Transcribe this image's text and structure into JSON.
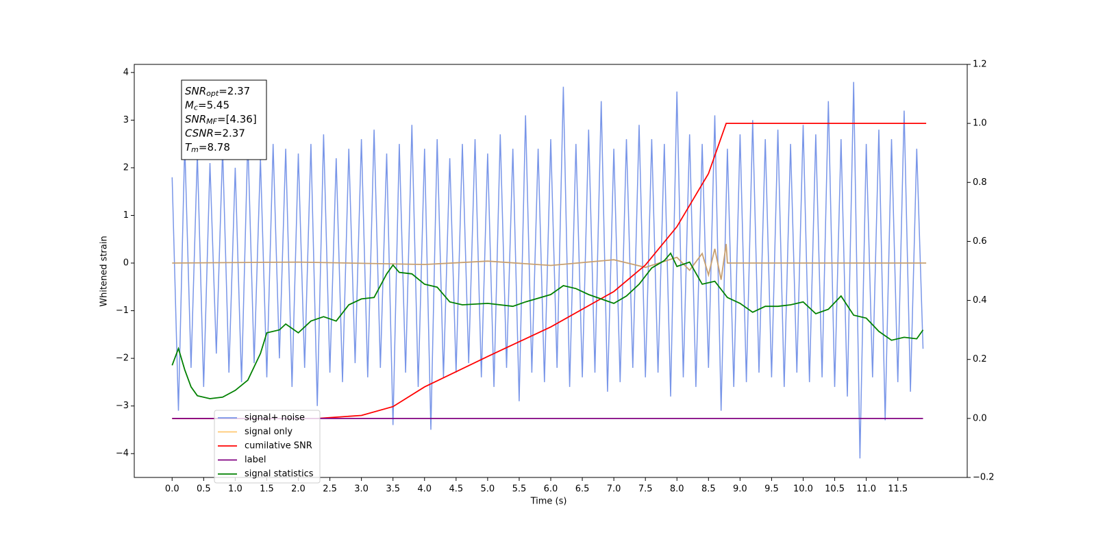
{
  "chart_data": {
    "type": "line",
    "xlabel": "Time (s)",
    "ylabel": "Whitened strain",
    "xlim": [
      -0.6,
      12.6
    ],
    "ylim": [
      -4.5,
      4.17
    ],
    "y2lim": [
      -0.2,
      1.2
    ],
    "xticks": [
      {
        "value": 0,
        "label": "0.0"
      },
      0.5,
      {
        "value": 1,
        "label": "1.0"
      },
      1.5,
      {
        "value": 2,
        "label": "2.0"
      },
      2.5,
      {
        "value": 3,
        "label": "3.0"
      },
      3.5,
      {
        "value": 4,
        "label": "4.0"
      },
      4.5,
      {
        "value": 5,
        "label": "5.0"
      },
      5.5,
      {
        "value": 6,
        "label": "6.0"
      },
      6.5,
      {
        "value": 7,
        "label": "7.0"
      },
      7.5,
      {
        "value": 8,
        "label": "8.0"
      },
      8.5,
      {
        "value": 9,
        "label": "9.0"
      },
      9.5,
      {
        "value": 10,
        "label": "10.0"
      },
      10.5,
      {
        "value": 11,
        "label": "11.0"
      },
      11.5
    ],
    "yticks": [
      {
        "value": -4,
        "label": "−4"
      },
      {
        "value": -3,
        "label": "−3"
      },
      {
        "value": -2,
        "label": "−2"
      },
      {
        "value": -1,
        "label": "−1"
      },
      0,
      1,
      2,
      3,
      4
    ],
    "y2ticks": [
      {
        "value": -0.2,
        "label": "−0.2"
      },
      {
        "value": 0,
        "label": "0.0"
      },
      0.2,
      0.4,
      0.6,
      0.8,
      {
        "value": 1,
        "label": "1.0"
      },
      1.2
    ],
    "legend": "lower left",
    "annotations": [
      {
        "symbol": "SNR",
        "subscript": "opt",
        "text": "=2.37"
      },
      {
        "symbol": "M",
        "subscript": "c",
        "text": "=5.45"
      },
      {
        "symbol": "SNR",
        "subscript": "MF",
        "text": "=[4.36]"
      },
      {
        "symbol": "CSNR",
        "subscript": "",
        "text": "=2.37"
      },
      {
        "symbol": "T",
        "subscript": "m",
        "text": "=8.78"
      }
    ],
    "series": [
      {
        "name": "signal+ noise",
        "color": "#7895e8",
        "axis": "y",
        "x": [
          0.0,
          0.1,
          0.2,
          0.3,
          0.4,
          0.5,
          0.6,
          0.7,
          0.8,
          0.9,
          1.0,
          1.1,
          1.2,
          1.3,
          1.4,
          1.5,
          1.6,
          1.7,
          1.8,
          1.9,
          2.0,
          2.1,
          2.2,
          2.3,
          2.4,
          2.5,
          2.6,
          2.7,
          2.8,
          2.9,
          3.0,
          3.1,
          3.2,
          3.3,
          3.4,
          3.5,
          3.6,
          3.7,
          3.8,
          3.9,
          4.0,
          4.1,
          4.2,
          4.3,
          4.4,
          4.5,
          4.6,
          4.7,
          4.8,
          4.9,
          5.0,
          5.1,
          5.2,
          5.3,
          5.4,
          5.5,
          5.6,
          5.7,
          5.8,
          5.9,
          6.0,
          6.1,
          6.2,
          6.3,
          6.4,
          6.5,
          6.6,
          6.7,
          6.8,
          6.9,
          7.0,
          7.1,
          7.2,
          7.3,
          7.4,
          7.5,
          7.6,
          7.7,
          7.8,
          7.9,
          8.0,
          8.1,
          8.2,
          8.3,
          8.4,
          8.5,
          8.6,
          8.7,
          8.8,
          8.9,
          9.0,
          9.1,
          9.2,
          9.3,
          9.4,
          9.5,
          9.6,
          9.7,
          9.8,
          9.9,
          10.0,
          10.1,
          10.2,
          10.3,
          10.4,
          10.5,
          10.6,
          10.7,
          10.8,
          10.9,
          11.0,
          11.1,
          11.2,
          11.3,
          11.4,
          11.5,
          11.6,
          11.7,
          11.8,
          11.9
        ],
        "values": [
          1.8,
          -3.1,
          2.5,
          -2.2,
          2.3,
          -2.6,
          2.1,
          -1.9,
          2.4,
          -2.3,
          2.0,
          -2.5,
          2.6,
          -2.1,
          2.2,
          -2.4,
          2.5,
          -2.0,
          2.4,
          -2.6,
          2.3,
          -2.2,
          2.5,
          -3.0,
          2.7,
          -2.3,
          2.2,
          -2.5,
          2.4,
          -2.1,
          2.6,
          -2.4,
          2.8,
          -2.2,
          2.3,
          -3.4,
          2.5,
          -2.3,
          2.9,
          -2.6,
          2.4,
          -3.5,
          2.6,
          -2.4,
          2.2,
          -2.3,
          2.5,
          -2.1,
          2.6,
          -2.4,
          2.3,
          -2.6,
          2.7,
          -2.2,
          2.4,
          -2.9,
          3.1,
          -2.3,
          2.4,
          -2.5,
          2.6,
          -2.2,
          3.7,
          -2.6,
          2.5,
          -2.4,
          2.8,
          -2.3,
          3.4,
          -2.7,
          2.4,
          -2.5,
          2.6,
          -2.2,
          2.9,
          -2.4,
          2.6,
          -2.3,
          2.5,
          -2.8,
          3.6,
          -2.4,
          2.7,
          -2.6,
          2.5,
          -2.2,
          3.1,
          -3.1,
          2.4,
          -2.6,
          2.7,
          -2.5,
          3.0,
          -2.3,
          2.6,
          -2.4,
          2.8,
          -2.6,
          2.5,
          -2.3,
          2.9,
          -2.5,
          2.7,
          -2.4,
          3.4,
          -2.6,
          2.6,
          -2.8,
          3.8,
          -4.1,
          2.5,
          -2.4,
          2.8,
          -3.3,
          2.6,
          -2.5,
          3.2,
          -2.7,
          2.4,
          -1.8
        ]
      },
      {
        "name": "signal only",
        "color": "#ffc870",
        "axis": "y",
        "x": [
          0,
          2,
          4,
          5,
          6,
          7,
          7.5,
          8,
          8.2,
          8.4,
          8.5,
          8.6,
          8.7,
          8.78,
          8.8,
          11.95
        ],
        "values": [
          0,
          0.02,
          -0.03,
          0.04,
          -0.05,
          0.07,
          -0.09,
          0.12,
          -0.15,
          0.2,
          -0.25,
          0.3,
          -0.35,
          0.4,
          0,
          0
        ]
      },
      {
        "name": "cumilative SNR",
        "color": "#ff0000",
        "axis": "y2",
        "x": [
          0,
          2.3,
          3.0,
          3.5,
          4.0,
          5.0,
          6.0,
          7.0,
          7.5,
          8.0,
          8.5,
          8.78,
          11.95
        ],
        "values": [
          0,
          0,
          0.01,
          0.04,
          0.107,
          0.21,
          0.31,
          0.43,
          0.52,
          0.65,
          0.83,
          1.0,
          1.0
        ]
      },
      {
        "name": "label",
        "color": "#800080",
        "axis": "y2",
        "x": [
          0,
          11.9
        ],
        "values": [
          0,
          0
        ]
      },
      {
        "name": "signal statistics",
        "color": "#008000",
        "axis": "y2",
        "x": [
          0.0,
          0.1,
          0.2,
          0.3,
          0.4,
          0.6,
          0.8,
          1.0,
          1.2,
          1.4,
          1.5,
          1.7,
          1.8,
          2.0,
          2.2,
          2.4,
          2.6,
          2.8,
          3.0,
          3.2,
          3.4,
          3.5,
          3.6,
          3.8,
          4.0,
          4.2,
          4.4,
          4.6,
          5.0,
          5.4,
          5.6,
          6.0,
          6.2,
          6.4,
          6.6,
          7.0,
          7.2,
          7.4,
          7.6,
          7.8,
          7.9,
          8.0,
          8.2,
          8.4,
          8.6,
          8.8,
          9.0,
          9.2,
          9.4,
          9.6,
          9.8,
          10.0,
          10.2,
          10.4,
          10.6,
          10.8,
          11.0,
          11.2,
          11.4,
          11.6,
          11.8,
          11.9
        ],
        "values": [
          0.18,
          0.237,
          0.165,
          0.107,
          0.077,
          0.067,
          0.072,
          0.095,
          0.13,
          0.22,
          0.29,
          0.3,
          0.32,
          0.29,
          0.33,
          0.345,
          0.33,
          0.385,
          0.405,
          0.41,
          0.49,
          0.52,
          0.495,
          0.49,
          0.455,
          0.445,
          0.395,
          0.385,
          0.39,
          0.38,
          0.395,
          0.42,
          0.45,
          0.44,
          0.42,
          0.39,
          0.415,
          0.455,
          0.51,
          0.535,
          0.56,
          0.515,
          0.53,
          0.455,
          0.465,
          0.41,
          0.39,
          0.36,
          0.38,
          0.38,
          0.385,
          0.395,
          0.355,
          0.37,
          0.415,
          0.35,
          0.34,
          0.295,
          0.265,
          0.275,
          0.27,
          0.3
        ]
      }
    ]
  }
}
